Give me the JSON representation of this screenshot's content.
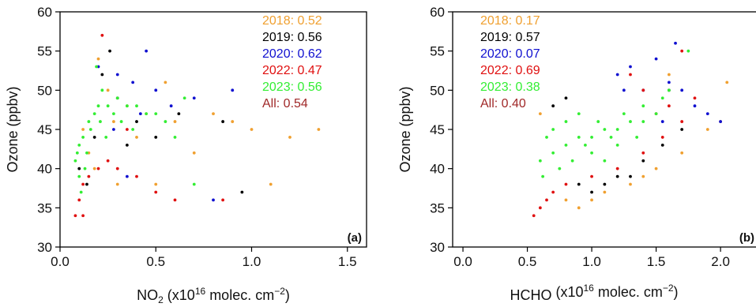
{
  "chart_data": [
    {
      "type": "scatter",
      "panel_label": "(a)",
      "ylabel": "Ozone (ppbv)",
      "xlabel_main": "NO",
      "xlabel_sub": "2",
      "xlabel_rest": " (x10",
      "xlabel_exp": "16",
      "xlabel_unit": " molec. cm",
      "xlabel_unit_exp": "−2",
      "xlabel_close": ")",
      "xlim": [
        0,
        1.6
      ],
      "ylim": [
        30,
        60
      ],
      "xticks": [
        "0.0",
        "0.5",
        "1.0",
        "1.5"
      ],
      "xtick_values": [
        0,
        0.5,
        1.0,
        1.5
      ],
      "yticks": [
        "30",
        "35",
        "40",
        "45",
        "50",
        "55",
        "60"
      ],
      "ytick_values": [
        30,
        35,
        40,
        45,
        50,
        55,
        60
      ],
      "legend_position": "top-right",
      "legend": [
        {
          "label": "2018: 0.52",
          "color": "#f0a030"
        },
        {
          "label": "2019: 0.56",
          "color": "#000000"
        },
        {
          "label": "2020: 0.62",
          "color": "#1010d0"
        },
        {
          "label": "2022: 0.47",
          "color": "#e01010"
        },
        {
          "label": "2023: 0.56",
          "color": "#33ee33"
        },
        {
          "label": "All: 0.54",
          "color": "#a02828"
        }
      ],
      "series": [
        {
          "name": "2018",
          "color": "#f0a030",
          "points": [
            [
              0.12,
              45
            ],
            [
              0.25,
              50
            ],
            [
              0.35,
              48
            ],
            [
              0.45,
              47
            ],
            [
              0.6,
              46
            ],
            [
              0.8,
              47
            ],
            [
              1.0,
              45
            ],
            [
              1.2,
              44
            ],
            [
              1.35,
              45
            ],
            [
              0.5,
              38
            ],
            [
              0.3,
              38
            ],
            [
              0.2,
              54
            ],
            [
              0.15,
              42
            ],
            [
              0.4,
              44
            ],
            [
              0.7,
              42
            ],
            [
              1.1,
              38
            ],
            [
              0.9,
              46
            ],
            [
              0.55,
              51
            ],
            [
              0.28,
              46
            ],
            [
              0.18,
              40
            ]
          ]
        },
        {
          "name": "2019",
          "color": "#000000",
          "points": [
            [
              0.1,
              40
            ],
            [
              0.22,
              52
            ],
            [
              0.3,
              49
            ],
            [
              0.4,
              46
            ],
            [
              0.5,
              44
            ],
            [
              0.62,
              47
            ],
            [
              0.85,
              46
            ],
            [
              0.95,
              37
            ],
            [
              0.18,
              44
            ],
            [
              0.35,
              43
            ],
            [
              0.26,
              55
            ],
            [
              0.14,
              38
            ]
          ]
        },
        {
          "name": "2020",
          "color": "#1010d0",
          "points": [
            [
              0.2,
              53
            ],
            [
              0.3,
              52
            ],
            [
              0.38,
              51
            ],
            [
              0.45,
              55
            ],
            [
              0.5,
              50
            ],
            [
              0.58,
              48
            ],
            [
              0.7,
              49
            ],
            [
              0.9,
              50
            ],
            [
              0.35,
              39
            ],
            [
              0.28,
              45
            ],
            [
              0.42,
              47
            ],
            [
              0.8,
              36
            ]
          ]
        },
        {
          "name": "2022",
          "color": "#e01010",
          "points": [
            [
              0.08,
              34
            ],
            [
              0.1,
              36
            ],
            [
              0.12,
              38
            ],
            [
              0.15,
              39
            ],
            [
              0.2,
              40
            ],
            [
              0.25,
              41
            ],
            [
              0.3,
              40
            ],
            [
              0.4,
              39
            ],
            [
              0.5,
              37
            ],
            [
              0.6,
              36
            ],
            [
              0.85,
              36
            ],
            [
              0.35,
              45
            ],
            [
              0.22,
              57
            ],
            [
              0.12,
              34
            ]
          ]
        },
        {
          "name": "2023",
          "color": "#33ee33",
          "points": [
            [
              0.08,
              41
            ],
            [
              0.1,
              43
            ],
            [
              0.12,
              44
            ],
            [
              0.15,
              46
            ],
            [
              0.18,
              47
            ],
            [
              0.2,
              48
            ],
            [
              0.25,
              48
            ],
            [
              0.3,
              49
            ],
            [
              0.35,
              48
            ],
            [
              0.4,
              48
            ],
            [
              0.45,
              47
            ],
            [
              0.5,
              47
            ],
            [
              0.55,
              46
            ],
            [
              0.6,
              44
            ],
            [
              0.7,
              38
            ],
            [
              0.1,
              39
            ],
            [
              0.14,
              42
            ],
            [
              0.22,
              50
            ],
            [
              0.28,
              47
            ],
            [
              0.32,
              46
            ],
            [
              0.38,
              45
            ],
            [
              0.16,
              45
            ],
            [
              0.24,
              44
            ],
            [
              0.19,
              53
            ],
            [
              0.65,
              49
            ],
            [
              0.11,
              37
            ],
            [
              0.13,
              40
            ],
            [
              0.09,
              42
            ],
            [
              0.21,
              46
            ]
          ]
        }
      ]
    },
    {
      "type": "scatter",
      "panel_label": "(b)",
      "ylabel": "Ozone (ppbv)",
      "xlabel_main": "HCHO",
      "xlabel_sub": "",
      "xlabel_rest": " (x10",
      "xlabel_exp": "16",
      "xlabel_unit": " molec. cm",
      "xlabel_unit_exp": "−2",
      "xlabel_close": ")",
      "xlim": [
        -0.08,
        2.3
      ],
      "ylim": [
        30,
        60
      ],
      "xticks": [
        "0.0",
        "0.5",
        "1.0",
        "1.5",
        "2.0"
      ],
      "xtick_values": [
        0,
        0.5,
        1.0,
        1.5,
        2.0
      ],
      "yticks": [
        "30",
        "35",
        "40",
        "45",
        "50",
        "55",
        "60"
      ],
      "ytick_values": [
        30,
        35,
        40,
        45,
        50,
        55,
        60
      ],
      "legend_position": "top-left",
      "legend": [
        {
          "label": "2018: 0.17",
          "color": "#f0a030"
        },
        {
          "label": "2019: 0.57",
          "color": "#000000"
        },
        {
          "label": "2020: 0.07",
          "color": "#1010d0"
        },
        {
          "label": "2022: 0.69",
          "color": "#e01010"
        },
        {
          "label": "2023: 0.38",
          "color": "#33ee33"
        },
        {
          "label": "All: 0.40",
          "color": "#a02828"
        }
      ],
      "series": [
        {
          "name": "2018",
          "color": "#f0a030",
          "points": [
            [
              0.9,
              35
            ],
            [
              1.0,
              36
            ],
            [
              1.1,
              37
            ],
            [
              1.3,
              38
            ],
            [
              1.5,
              40
            ],
            [
              1.7,
              42
            ],
            [
              1.9,
              45
            ],
            [
              2.0,
              46
            ],
            [
              0.8,
              36
            ],
            [
              1.4,
              39
            ],
            [
              0.6,
              47
            ],
            [
              1.6,
              52
            ],
            [
              2.05,
              51
            ]
          ]
        },
        {
          "name": "2019",
          "color": "#000000",
          "points": [
            [
              0.9,
              38
            ],
            [
              1.1,
              38
            ],
            [
              1.2,
              39
            ],
            [
              1.3,
              39
            ],
            [
              1.4,
              41
            ],
            [
              1.55,
              43
            ],
            [
              1.7,
              45
            ],
            [
              0.7,
              48
            ],
            [
              0.8,
              49
            ],
            [
              1.6,
              50
            ],
            [
              1.0,
              37
            ]
          ]
        },
        {
          "name": "2020",
          "color": "#1010d0",
          "points": [
            [
              1.2,
              52
            ],
            [
              1.3,
              53
            ],
            [
              1.4,
              50
            ],
            [
              1.5,
              54
            ],
            [
              1.6,
              51
            ],
            [
              1.7,
              50
            ],
            [
              1.8,
              48
            ],
            [
              1.9,
              47
            ],
            [
              2.0,
              46
            ],
            [
              1.25,
              50
            ],
            [
              1.55,
              46
            ],
            [
              1.65,
              56
            ]
          ]
        },
        {
          "name": "2022",
          "color": "#e01010",
          "points": [
            [
              0.6,
              35
            ],
            [
              0.7,
              37
            ],
            [
              0.8,
              38
            ],
            [
              1.0,
              39
            ],
            [
              1.2,
              40
            ],
            [
              1.4,
              42
            ],
            [
              1.55,
              44
            ],
            [
              1.7,
              46
            ],
            [
              1.5,
              47
            ],
            [
              1.6,
              48
            ],
            [
              1.4,
              50
            ],
            [
              1.3,
              52
            ],
            [
              1.7,
              55
            ],
            [
              0.55,
              34
            ],
            [
              1.8,
              49
            ],
            [
              0.65,
              36
            ]
          ]
        },
        {
          "name": "2023",
          "color": "#33ee33",
          "points": [
            [
              0.6,
              41
            ],
            [
              0.7,
              42
            ],
            [
              0.8,
              43
            ],
            [
              0.9,
              44
            ],
            [
              1.0,
              44
            ],
            [
              1.1,
              45
            ],
            [
              1.2,
              45
            ],
            [
              1.3,
              46
            ],
            [
              1.4,
              46
            ],
            [
              1.5,
              47
            ],
            [
              0.7,
              45
            ],
            [
              0.8,
              46
            ],
            [
              0.9,
              47
            ],
            [
              1.0,
              42
            ],
            [
              1.2,
              43
            ],
            [
              1.4,
              48
            ],
            [
              1.6,
              50
            ],
            [
              0.65,
              44
            ],
            [
              0.75,
              40
            ],
            [
              0.85,
              41
            ],
            [
              1.05,
              46
            ],
            [
              1.25,
              47
            ],
            [
              1.35,
              44
            ],
            [
              1.55,
              49
            ],
            [
              0.95,
              43
            ],
            [
              1.15,
              44
            ],
            [
              0.62,
              39
            ],
            [
              1.75,
              55
            ],
            [
              1.1,
              41
            ]
          ]
        }
      ]
    }
  ]
}
